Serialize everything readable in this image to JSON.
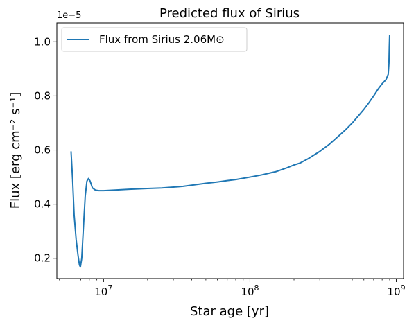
{
  "chart_data": {
    "type": "line",
    "title": "Predicted flux of Sirius",
    "xlabel": "Star age [yr]",
    "ylabel": "Flux [erg cm⁻² s⁻¹]",
    "xscale": "log",
    "xlim": [
      4800000.0,
      1120000000.0
    ],
    "ylim": [
      0.125,
      1.07
    ],
    "y_multiplier": "1e−5",
    "x_ticks": [
      {
        "value": 10000000.0,
        "base": "10",
        "exp": "7"
      },
      {
        "value": 100000000.0,
        "base": "10",
        "exp": "8"
      },
      {
        "value": 1000000000.0,
        "base": "10",
        "exp": "9"
      }
    ],
    "y_ticks": [
      {
        "value": 0.2,
        "label": "0.2"
      },
      {
        "value": 0.4,
        "label": "0.4"
      },
      {
        "value": 0.6,
        "label": "0.6"
      },
      {
        "value": 0.8,
        "label": "0.8"
      },
      {
        "value": 1.0,
        "label": "1.0"
      }
    ],
    "grid": false,
    "legend_position": "top-left",
    "series": [
      {
        "name": "Flux from Sirius 2.06M⊙",
        "color": "#1f77b4",
        "x": [
          6000000.0,
          6150000.0,
          6300000.0,
          6500000.0,
          6700000.0,
          6850000.0,
          6950000.0,
          7100000.0,
          7300000.0,
          7500000.0,
          7700000.0,
          7900000.0,
          8100000.0,
          8400000.0,
          8800000.0,
          9300000.0,
          10000000.0,
          12000000.0,
          15000000.0,
          20000000.0,
          25000000.0,
          30000000.0,
          35000000.0,
          40000000.0,
          50000000.0,
          60000000.0,
          70000000.0,
          80000000.0,
          100000000.0,
          120000000.0,
          150000000.0,
          180000000.0,
          200000000.0,
          220000000.0,
          250000000.0,
          300000000.0,
          350000000.0,
          400000000.0,
          450000000.0,
          500000000.0,
          550000000.0,
          600000000.0,
          650000000.0,
          700000000.0,
          750000000.0,
          800000000.0,
          850000000.0,
          880000000.0,
          890000000.0,
          895000000.0,
          900000000.0
        ],
        "y": [
          0.595,
          0.49,
          0.36,
          0.27,
          0.21,
          0.175,
          0.168,
          0.2,
          0.32,
          0.43,
          0.485,
          0.495,
          0.485,
          0.46,
          0.452,
          0.45,
          0.45,
          0.452,
          0.455,
          0.458,
          0.46,
          0.463,
          0.466,
          0.47,
          0.477,
          0.482,
          0.487,
          0.491,
          0.5,
          0.508,
          0.52,
          0.535,
          0.545,
          0.552,
          0.568,
          0.595,
          0.622,
          0.65,
          0.675,
          0.7,
          0.726,
          0.75,
          0.775,
          0.8,
          0.825,
          0.845,
          0.86,
          0.88,
          0.92,
          0.98,
          1.025
        ]
      }
    ]
  }
}
